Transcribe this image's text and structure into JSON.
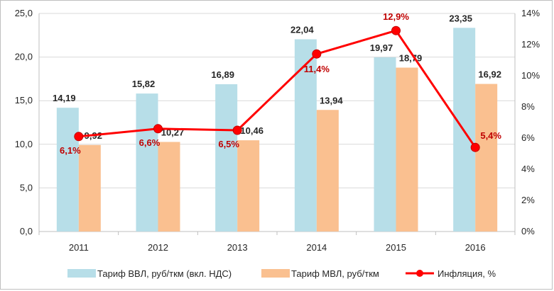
{
  "chart_data": {
    "type": "bar",
    "categories": [
      "2011",
      "2012",
      "2013",
      "2014",
      "2015",
      "2016"
    ],
    "series": [
      {
        "name": "Тариф ВВЛ, руб/ткм (вкл. НДС)",
        "kind": "bar",
        "axis": "left",
        "color": "#b7dee8",
        "values": [
          14.19,
          15.82,
          16.89,
          22.04,
          19.97,
          23.35
        ],
        "labels": [
          "14,19",
          "15,82",
          "16,89",
          "22,04",
          "19,97",
          "23,35"
        ]
      },
      {
        "name": "Тариф МВЛ, руб/ткм",
        "kind": "bar",
        "axis": "left",
        "color": "#fac090",
        "values": [
          9.92,
          10.27,
          10.46,
          13.94,
          18.79,
          16.92
        ],
        "labels": [
          "9,92",
          "10,27",
          "10,46",
          "13,94",
          "18,79",
          "16,92"
        ]
      },
      {
        "name": "Инфляция, %",
        "kind": "line",
        "axis": "right",
        "color": "#ff0000",
        "values": [
          6.1,
          6.6,
          6.5,
          11.4,
          12.9,
          5.4
        ],
        "labels": [
          "6,1%",
          "6,6%",
          "6,5%",
          "11,4%",
          "12,9%",
          "5,4%"
        ]
      }
    ],
    "y_left": {
      "min": 0,
      "max": 25,
      "ticks": [
        "0,0",
        "5,0",
        "10,0",
        "15,0",
        "20,0",
        "25,0"
      ]
    },
    "y_right": {
      "min": 0,
      "max": 14,
      "ticks": [
        "0%",
        "2%",
        "4%",
        "6%",
        "8%",
        "10%",
        "12%",
        "14%"
      ]
    },
    "grid": "horizontal",
    "legend_position": "bottom",
    "title": ""
  }
}
